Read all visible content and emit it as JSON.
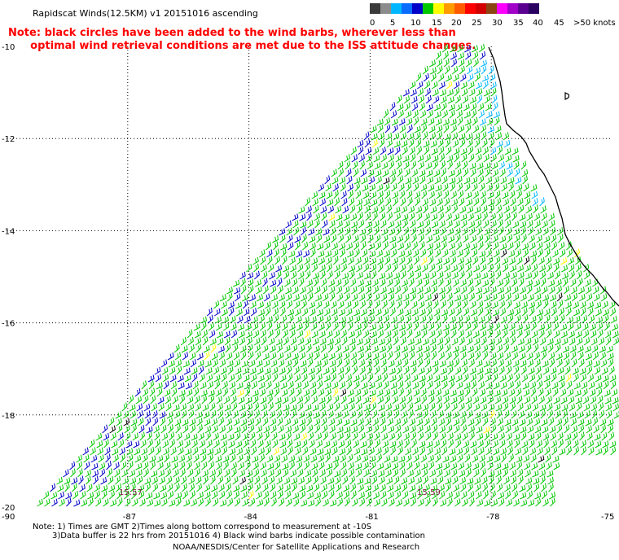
{
  "title": "Rapidscat Winds(12.5KM) v1 20151016 ascending",
  "red_note": {
    "line1": "Note: black circles have been added to the wind barbs, wherever less than",
    "line2": "      optimal wind retrieval conditions are met due to the ISS attitude changes."
  },
  "legend": {
    "labels": [
      "0",
      "5",
      "10",
      "15",
      "20",
      "25",
      "30",
      "35",
      "40",
      "45",
      ">50 knots"
    ],
    "colors": [
      "#3a3a3a",
      "#8c8c8c",
      "#00b7ff",
      "#0a6cff",
      "#0000c8",
      "#00c800",
      "#ffff00",
      "#ff9c00",
      "#ff5a00",
      "#ff0000",
      "#d20000",
      "#8b4513",
      "#ff00ff",
      "#a000c8",
      "#5a0090",
      "#2a0060"
    ]
  },
  "map": {
    "lat_labels": [
      "-10",
      "-12",
      "-14",
      "-16",
      "-18",
      "-20"
    ],
    "lon_labels": [
      "-90",
      "-87",
      "-84",
      "-81",
      "-78",
      "-75"
    ],
    "pass_times": [
      "15:57",
      "15:59"
    ],
    "lat_range": [
      -20,
      -10
    ],
    "lon_range": [
      -90,
      -75
    ],
    "barb_colors": {
      "green": "#00c800",
      "blue": "#0000c8",
      "cyan": "#00b7ff",
      "yellow": "#ffff00",
      "contaminated": "#000000"
    },
    "coast_color": "#000000",
    "grid": "dotted"
  },
  "bottom_note": {
    "line1": "Note: 1) Times are GMT 2)Times along bottom correspond to measurement at -10S",
    "line2": "3)Data buffer is 22 hrs from 20151016 4) Black wind barbs indicate possible contamination"
  },
  "credit": "NOAA/NESDIS/Center for Satellite Applications and Research"
}
